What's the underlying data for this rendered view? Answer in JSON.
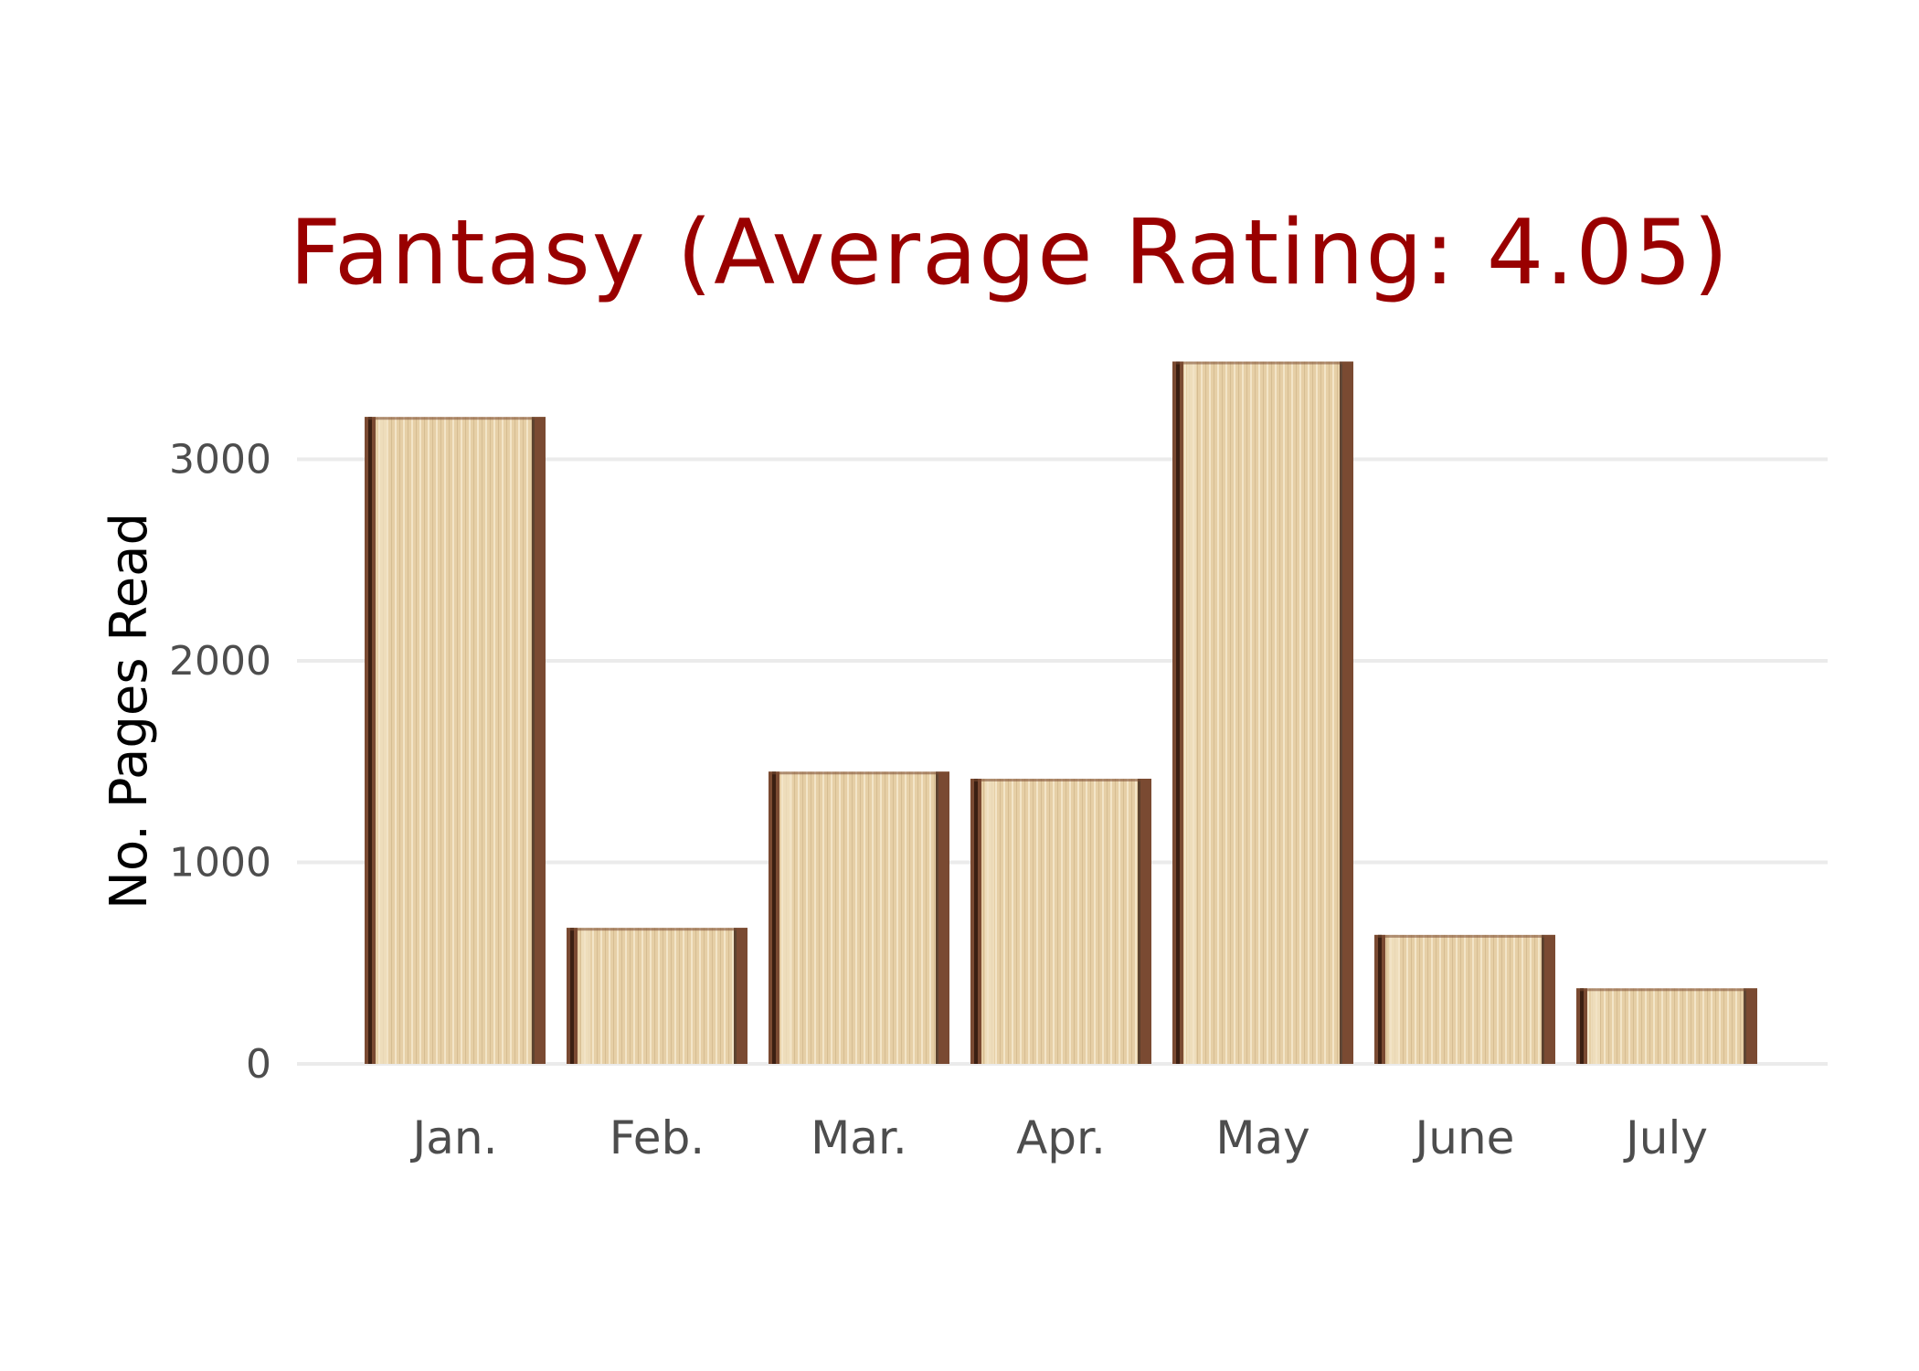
{
  "chart_data": {
    "type": "bar",
    "title": "Fantasy (Average Rating: 4.05)",
    "xlabel": "",
    "ylabel": "No. Pages Read",
    "categories": [
      "Jan.",
      "Feb.",
      "Mar.",
      "Apr.",
      "May",
      "June",
      "July"
    ],
    "values": [
      3210,
      675,
      1450,
      1415,
      3485,
      640,
      375
    ],
    "ylim": [
      0,
      3500
    ],
    "yticks": [
      0,
      1000,
      2000,
      3000
    ],
    "grid": true,
    "legend": "none",
    "bar_style": "book-page-edge texture",
    "colors": {
      "title": "#990000",
      "page": "#e6cfa6",
      "page_light": "#f1e2c4",
      "spine": "#7a4a32",
      "spine_dark": "#3b1f12",
      "grid": "#ebebeb",
      "tick_text": "#4d4d4d",
      "axis_label": "#000000"
    }
  }
}
